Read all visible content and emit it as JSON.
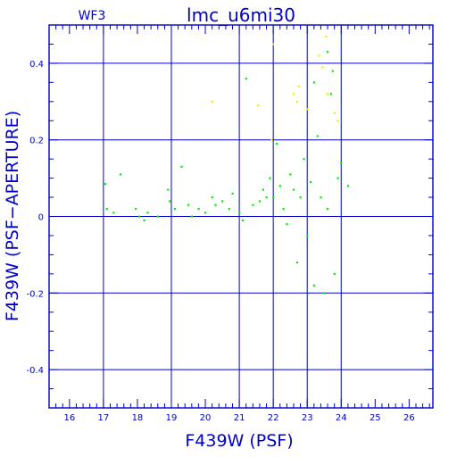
{
  "chart_data": {
    "type": "scatter",
    "title": "lmc_u6mi30",
    "corner_label": "WF3",
    "xlabel": "F439W (PSF)",
    "ylabel": "F439W (PSF−APERTURE)",
    "xlim": [
      15.4,
      26.7
    ],
    "ylim": [
      -0.5,
      0.5
    ],
    "x_major_ticks": [
      16,
      17,
      18,
      19,
      20,
      21,
      22,
      23,
      24,
      25,
      26
    ],
    "x_tick_labels": [
      "16",
      "17",
      "18",
      "19",
      "20",
      "21",
      "22",
      "23",
      "24",
      "25",
      "26"
    ],
    "x_gridlines": [
      17,
      19,
      21,
      22,
      23,
      24
    ],
    "y_major_ticks": [
      -0.4,
      -0.2,
      0,
      0.2,
      0.4
    ],
    "y_tick_labels": [
      "-0.4",
      "-0.2",
      "0",
      "0.2",
      "0.4"
    ],
    "y_gridlines": [
      -0.4,
      -0.2,
      0,
      0.2,
      0.4
    ],
    "colors": {
      "axes": "#0000cc",
      "main_points": "#00ee00",
      "rejected_points": "#eeee00"
    },
    "series": [
      {
        "color_key": "main_points",
        "points": [
          [
            17.05,
            0.085
          ],
          [
            17.1,
            0.02
          ],
          [
            17.3,
            0.01
          ],
          [
            17.5,
            0.11
          ],
          [
            17.95,
            0.02
          ],
          [
            18.05,
            0.0
          ],
          [
            18.2,
            -0.01
          ],
          [
            18.3,
            0.01
          ],
          [
            18.6,
            0.0
          ],
          [
            18.9,
            0.07
          ],
          [
            18.95,
            0.04
          ],
          [
            19.1,
            0.02
          ],
          [
            19.3,
            0.13
          ],
          [
            19.5,
            0.03
          ],
          [
            19.6,
            0.0
          ],
          [
            19.8,
            0.02
          ],
          [
            20.0,
            0.01
          ],
          [
            20.2,
            0.05
          ],
          [
            20.3,
            0.03
          ],
          [
            20.5,
            0.04
          ],
          [
            20.7,
            0.02
          ],
          [
            20.8,
            0.06
          ],
          [
            21.0,
            0.01
          ],
          [
            21.1,
            -0.01
          ],
          [
            21.2,
            0.36
          ],
          [
            21.4,
            0.03
          ],
          [
            21.6,
            0.04
          ],
          [
            21.7,
            0.07
          ],
          [
            21.8,
            0.05
          ],
          [
            21.9,
            0.1
          ],
          [
            22.0,
            0.05
          ],
          [
            22.1,
            0.19
          ],
          [
            22.2,
            0.08
          ],
          [
            22.3,
            0.02
          ],
          [
            22.4,
            -0.02
          ],
          [
            22.5,
            0.11
          ],
          [
            22.6,
            0.07
          ],
          [
            22.7,
            -0.12
          ],
          [
            22.8,
            0.05
          ],
          [
            22.9,
            0.15
          ],
          [
            23.0,
            -0.05
          ],
          [
            23.1,
            0.09
          ],
          [
            23.2,
            -0.18
          ],
          [
            23.3,
            0.21
          ],
          [
            23.4,
            0.05
          ],
          [
            23.5,
            -0.2
          ],
          [
            23.6,
            0.02
          ],
          [
            23.7,
            0.32
          ],
          [
            23.8,
            -0.15
          ],
          [
            23.9,
            0.1
          ],
          [
            24.0,
            0.14
          ],
          [
            24.2,
            0.08
          ],
          [
            23.6,
            0.43
          ],
          [
            23.75,
            0.38
          ],
          [
            23.2,
            0.35
          ]
        ]
      },
      {
        "color_key": "rejected_points",
        "points": [
          [
            20.2,
            0.3
          ],
          [
            21.55,
            0.29
          ],
          [
            21.95,
            0.2
          ],
          [
            22.0,
            0.45
          ],
          [
            22.6,
            0.32
          ],
          [
            22.7,
            0.3
          ],
          [
            22.75,
            0.34
          ],
          [
            23.0,
            0.28
          ],
          [
            23.35,
            0.42
          ],
          [
            23.45,
            0.39
          ],
          [
            23.6,
            0.32
          ],
          [
            23.8,
            0.27
          ],
          [
            23.9,
            0.25
          ],
          [
            23.55,
            0.47
          ]
        ]
      }
    ]
  }
}
